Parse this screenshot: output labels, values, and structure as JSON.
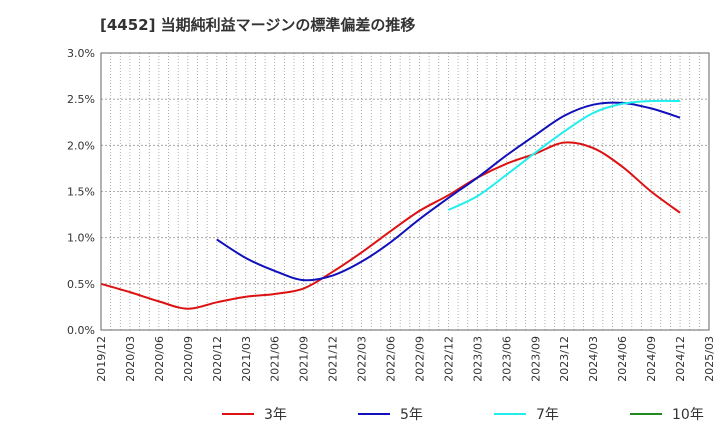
{
  "chart_data": {
    "type": "line",
    "title": "[4452]  当期純利益マージンの標準偏差の推移",
    "xlabel": "",
    "ylabel": "",
    "ylim": [
      0,
      0.03
    ],
    "y_ticks": [
      "0.0%",
      "0.5%",
      "1.0%",
      "1.5%",
      "2.0%",
      "2.5%",
      "3.0%"
    ],
    "y_tick_values": [
      0,
      0.005,
      0.01,
      0.015,
      0.02,
      0.025,
      0.03
    ],
    "x_ticks": [
      "2019/12",
      "2020/03",
      "2020/06",
      "2020/09",
      "2020/12",
      "2021/03",
      "2021/06",
      "2021/09",
      "2021/12",
      "2022/03",
      "2022/06",
      "2022/09",
      "2022/12",
      "2023/03",
      "2023/06",
      "2023/09",
      "2023/12",
      "2024/03",
      "2024/06",
      "2024/09",
      "2024/12",
      "2025/03"
    ],
    "grid": true,
    "legend_position": "bottom",
    "series": [
      {
        "name": "3年",
        "color": "#dd1111",
        "x": [
          "2019/12",
          "2020/03",
          "2020/06",
          "2020/09",
          "2020/12",
          "2021/03",
          "2021/06",
          "2021/09",
          "2021/12",
          "2022/03",
          "2022/06",
          "2022/09",
          "2022/12",
          "2023/03",
          "2023/06",
          "2023/09",
          "2023/12",
          "2024/03",
          "2024/06",
          "2024/09",
          "2024/12"
        ],
        "values": [
          0.005,
          0.0041,
          0.0031,
          0.0023,
          0.003,
          0.0036,
          0.0039,
          0.0045,
          0.0063,
          0.0084,
          0.0107,
          0.0129,
          0.0146,
          0.0165,
          0.018,
          0.0191,
          0.0203,
          0.0197,
          0.0177,
          0.015,
          0.0127
        ]
      },
      {
        "name": "5年",
        "color": "#1111bb",
        "x": [
          "2020/12",
          "2021/03",
          "2021/06",
          "2021/09",
          "2021/12",
          "2022/03",
          "2022/06",
          "2022/09",
          "2022/12",
          "2023/03",
          "2023/06",
          "2023/09",
          "2023/12",
          "2024/03",
          "2024/06",
          "2024/09",
          "2024/12"
        ],
        "values": [
          0.0098,
          0.0078,
          0.0064,
          0.0054,
          0.0059,
          0.0074,
          0.0095,
          0.012,
          0.0143,
          0.0165,
          0.0189,
          0.0211,
          0.0232,
          0.0244,
          0.0246,
          0.024,
          0.023
        ]
      },
      {
        "name": "7年",
        "color": "#22eeee",
        "x": [
          "2022/12",
          "2023/03",
          "2023/06",
          "2023/09",
          "2023/12",
          "2024/03",
          "2024/06",
          "2024/09",
          "2024/12"
        ],
        "values": [
          0.013,
          0.0145,
          0.0168,
          0.0192,
          0.0215,
          0.0235,
          0.0245,
          0.0248,
          0.0248
        ]
      },
      {
        "name": "10年",
        "color": "#228822",
        "x": [],
        "values": []
      }
    ]
  }
}
